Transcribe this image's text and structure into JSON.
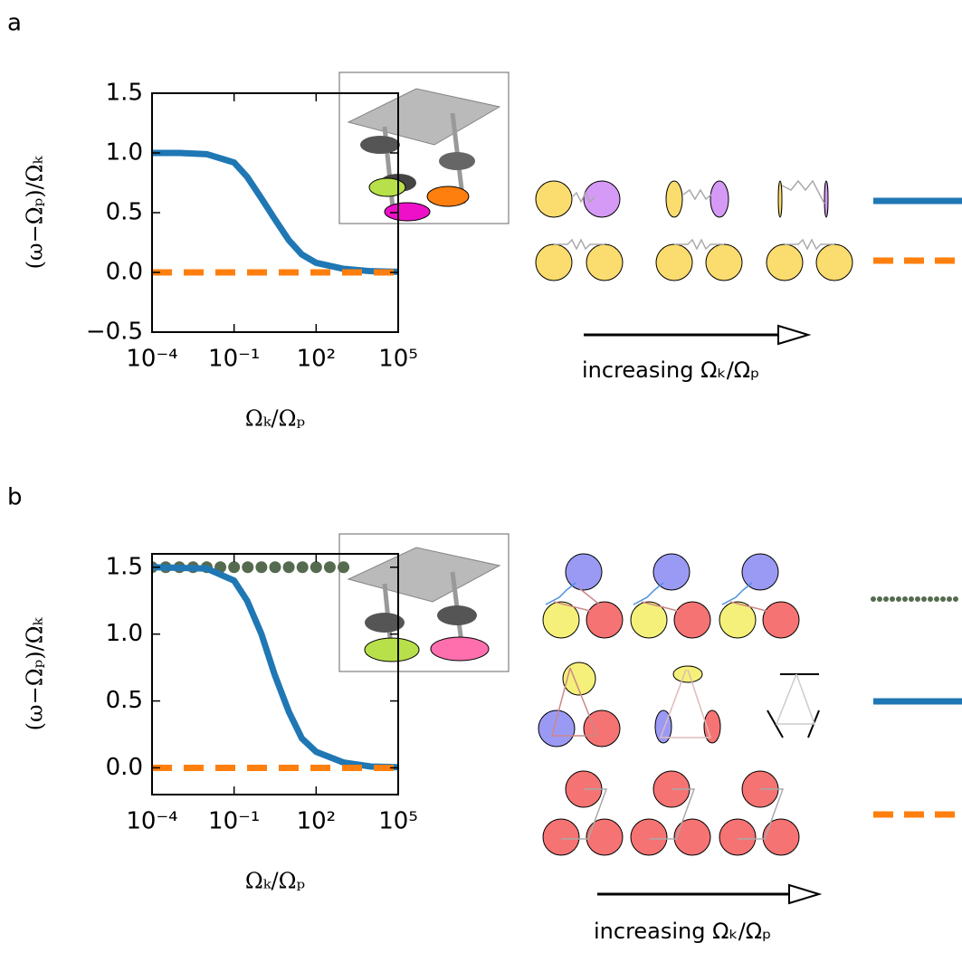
{
  "texts": {
    "panel_a": "a",
    "panel_b": "b",
    "arrow_a": "increasing Ωₖ/Ωₚ",
    "arrow_b": "increasing Ωₖ/Ωₚ"
  },
  "chart_data": [
    {
      "type": "line",
      "xscale": "log",
      "xlabel": "Ωₖ/Ωₚ",
      "ylabel": "(ω−Ωₚ)/Ωₖ",
      "xlim": [
        0.0001,
        100000
      ],
      "xticks": [
        {
          "value": 0.0001,
          "label": "10⁻⁴"
        },
        {
          "value": 0.1,
          "label": "10⁻¹"
        },
        {
          "value": 100,
          "label": "10²"
        },
        {
          "value": 100000,
          "label": "10⁵"
        }
      ],
      "ylim": [
        -0.5,
        1.5
      ],
      "yticks": [
        {
          "value": -0.5,
          "label": "−0.5"
        },
        {
          "value": 0,
          "label": "0.0"
        },
        0.5,
        {
          "value": 1,
          "label": "1.0"
        },
        1.5
      ],
      "series": [
        {
          "color": "#1f77b4",
          "style": "solid",
          "x": [
            0.0001,
            0.001,
            0.01,
            0.1,
            0.3,
            1,
            3,
            10,
            30,
            100,
            1000,
            10000,
            100000
          ],
          "values": [
            1,
            1,
            0.99,
            0.92,
            0.8,
            0.62,
            0.45,
            0.27,
            0.15,
            0.08,
            0.03,
            0.01,
            0.005
          ]
        },
        {
          "color": "#ff7f0e",
          "style": "dashed",
          "x": [
            0.0001,
            100000
          ],
          "values": [
            0,
            0
          ]
        }
      ]
    },
    {
      "type": "line",
      "xscale": "log",
      "xlabel": "Ωₖ/Ωₚ",
      "ylabel": "(ω−Ωₚ)/Ωₖ",
      "xlim": [
        0.0001,
        100000
      ],
      "xticks": [
        {
          "value": 0.0001,
          "label": "10⁻⁴"
        },
        {
          "value": 0.1,
          "label": "10⁻¹"
        },
        {
          "value": 100,
          "label": "10²"
        },
        {
          "value": 100000,
          "label": "10⁵"
        }
      ],
      "ylim": [
        -0.2,
        1.6
      ],
      "yticks": [
        {
          "value": 0,
          "label": "0.0"
        },
        0.5,
        {
          "value": 1,
          "label": "1.0"
        },
        1.5
      ],
      "series": [
        {
          "color": "#556b4f",
          "style": "dots",
          "x": [
            0.0001,
            0.000316,
            0.001,
            0.00316,
            0.01,
            0.0316,
            0.1,
            0.316,
            1,
            3.16,
            10,
            31.6,
            100,
            316,
            1000
          ],
          "values": [
            1.5,
            1.5,
            1.5,
            1.5,
            1.5,
            1.5,
            1.5,
            1.5,
            1.5,
            1.5,
            1.5,
            1.5,
            1.5,
            1.5,
            1.5
          ]
        },
        {
          "color": "#1f77b4",
          "style": "solid",
          "x": [
            0.0001,
            0.01,
            0.1,
            0.3,
            1,
            3,
            10,
            30,
            100,
            1000,
            10000,
            100000
          ],
          "values": [
            1.5,
            1.49,
            1.4,
            1.25,
            1.0,
            0.7,
            0.42,
            0.22,
            0.12,
            0.04,
            0.01,
            0.005
          ]
        },
        {
          "color": "#ff7f0e",
          "style": "dashed",
          "x": [
            0.0001,
            100000
          ],
          "values": [
            0,
            0
          ]
        }
      ]
    }
  ]
}
